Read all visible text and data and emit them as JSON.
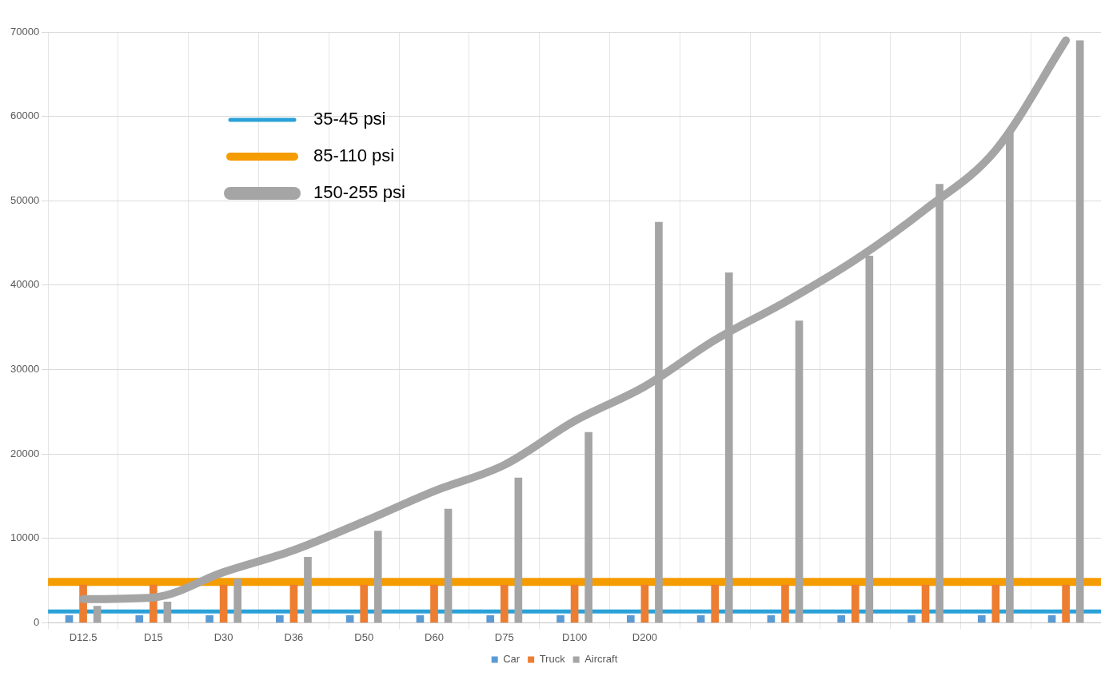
{
  "chart_data": {
    "type": "bar",
    "categories": [
      "D12.5",
      "D15",
      "D30",
      "D36",
      "D50",
      "D60",
      "D75",
      "D100",
      "D200",
      null,
      null,
      null,
      null,
      null,
      null
    ],
    "series": [
      {
        "name": "Car",
        "color": "#5b9bd5",
        "values": [
          900,
          900,
          900,
          900,
          900,
          900,
          900,
          900,
          900,
          900,
          900,
          900,
          900,
          900,
          900
        ]
      },
      {
        "name": "Truck",
        "color": "#ed7d31",
        "values": [
          4500,
          4500,
          4500,
          4500,
          4500,
          4500,
          4500,
          4500,
          4500,
          4500,
          4500,
          4500,
          4500,
          4500,
          4500
        ]
      },
      {
        "name": "Aircraft",
        "color": "#a5a5a5",
        "values": [
          2000,
          2500,
          5200,
          7800,
          10900,
          13500,
          17200,
          22600,
          47500,
          41500,
          35800,
          43500,
          52000,
          58000,
          69000
        ]
      },
      {
        "name": "150-255 psi",
        "type": "line",
        "color": "#a5a5a5",
        "values": [
          2800,
          3000,
          6000,
          8600,
          12000,
          15600,
          18700,
          23900,
          28000,
          33500,
          38000,
          43000,
          49000,
          56000,
          69000
        ]
      }
    ],
    "ref_lines": [
      {
        "axis": "y",
        "value": 1350,
        "label": "35-45 psi",
        "color": "#2aa1d8"
      },
      {
        "axis": "y",
        "value": 4850,
        "label": "85-110 psi",
        "color": "#f59c00"
      }
    ],
    "ylim": [
      0,
      70000
    ],
    "yticks": [
      0,
      10000,
      20000,
      30000,
      40000,
      50000,
      60000,
      70000
    ],
    "grid": true,
    "legend": "bottom"
  }
}
